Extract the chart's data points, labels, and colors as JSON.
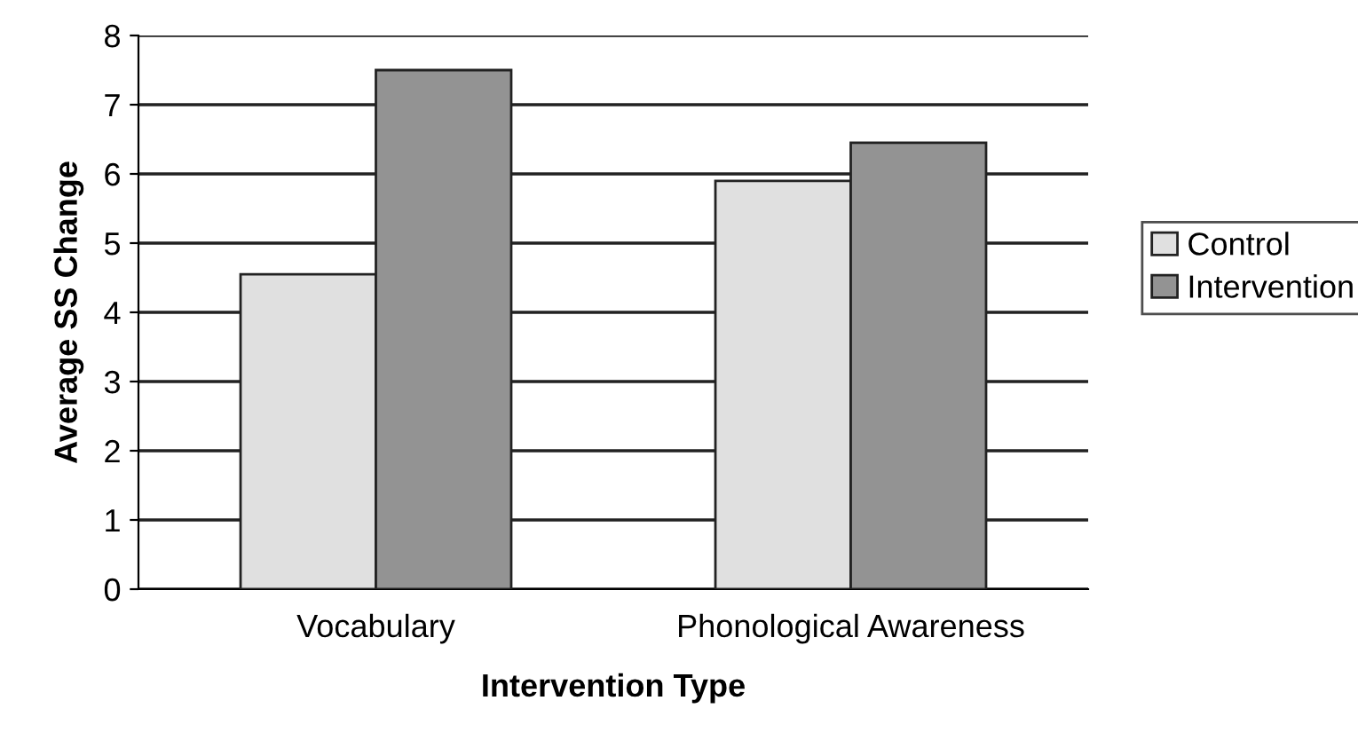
{
  "chart_data": {
    "type": "bar",
    "xlabel": "Intervention Type",
    "ylabel": "Average SS Change",
    "categories": [
      "Vocabulary",
      "Phonological Awareness"
    ],
    "series": [
      {
        "name": "Control",
        "color": "#e0e0e0",
        "values": [
          4.55,
          5.9
        ]
      },
      {
        "name": "Intervention",
        "color": "#939393",
        "values": [
          7.5,
          6.45
        ]
      }
    ],
    "ylim": [
      0,
      8
    ],
    "yticks": [
      0,
      1,
      2,
      3,
      4,
      5,
      6,
      7,
      8
    ],
    "grid": "y",
    "legend": "right"
  }
}
